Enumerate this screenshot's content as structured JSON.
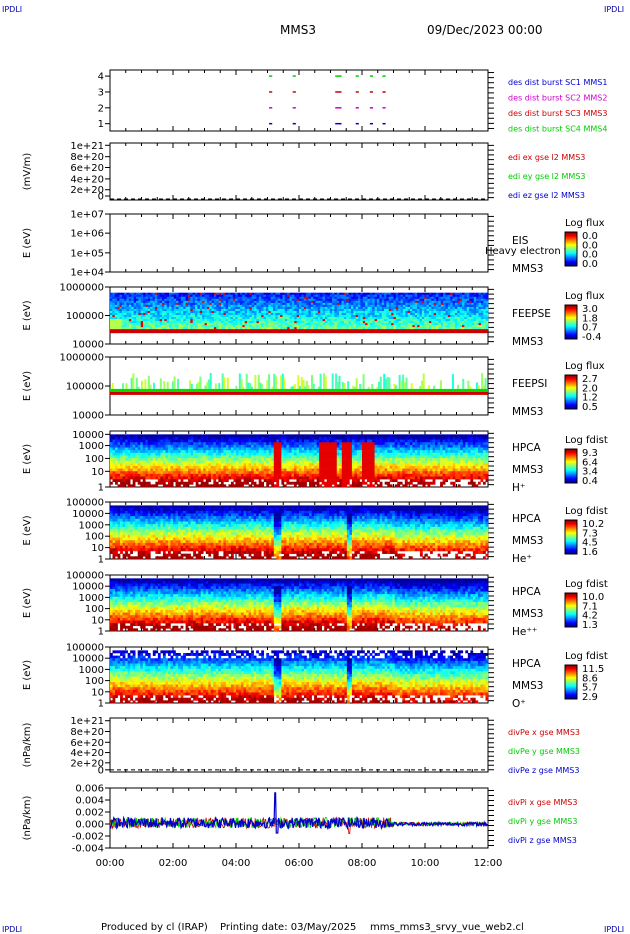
{
  "corners": {
    "top_left": "IPDLI",
    "top_right": "IPDLI",
    "bottom_left": "IPDLI",
    "bottom_right": "IPDLI"
  },
  "header": {
    "title": "MMS3",
    "date": "09/Dec/2023 00:00"
  },
  "footer": {
    "produced": "Produced by cl (IRAP)",
    "printing": "Printing date: 03/May/2025",
    "script": "mms_mms3_srvy_vue_web2.cl"
  },
  "x_axis": {
    "ticks": [
      "00:00",
      "02:00",
      "04:00",
      "06:00",
      "08:00",
      "10:00",
      "12:00"
    ]
  },
  "colors": {
    "red": "#cc0000",
    "green": "#00cc00",
    "blue": "#0000cc",
    "magenta": "#cc00cc",
    "dark": "#000000"
  },
  "chart_data": [
    {
      "type": "line",
      "id": "burst",
      "yticks": [
        "4",
        "3",
        "2",
        "1"
      ],
      "legend": [
        {
          "text": "des dist burst SC1 MMS1",
          "color": "#0000cc"
        },
        {
          "text": "des dist burst SC2 MMS2",
          "color": "#cc00cc"
        },
        {
          "text": "des dist burst SC3 MMS3",
          "color": "#cc0000"
        },
        {
          "text": "des dist burst SC4 MMS4",
          "color": "#00cc00"
        }
      ],
      "burst_intervals": [
        [
          5.05,
          5.15
        ],
        [
          5.8,
          5.9
        ],
        [
          7.15,
          7.35
        ],
        [
          7.8,
          7.9
        ],
        [
          8.25,
          8.35
        ],
        [
          8.65,
          8.75
        ]
      ]
    },
    {
      "type": "line",
      "id": "edi",
      "ylabel": "(mV/m)",
      "yticks": [
        "1e+21",
        "8e+20",
        "6e+20",
        "4e+20",
        "2e+20",
        "0"
      ],
      "legend": [
        {
          "text": "edi ex gse l2 MMS3",
          "color": "#cc0000"
        },
        {
          "text": "edi ey gse l2 MMS3",
          "color": "#00cc00"
        },
        {
          "text": "edi ez gse l2 MMS3",
          "color": "#0000cc"
        }
      ]
    },
    {
      "type": "heatmap",
      "id": "eis",
      "ylabel": "E (eV)",
      "yticks": [
        "1e+07",
        "1e+06",
        "1e+05",
        "1e+04"
      ],
      "labels": [
        "EIS",
        "MMS3"
      ],
      "overlay": "Heavy electron to",
      "cbar_title": "Log flux",
      "cbar_ticks": [
        "0.0",
        "0.0",
        "0.0",
        "0.0"
      ]
    },
    {
      "type": "heatmap",
      "id": "feepse",
      "ylabel": "E (eV)",
      "yticks": [
        "1000000",
        "100000",
        "10000"
      ],
      "labels": [
        "FEEPSE",
        "MMS3"
      ],
      "cbar_title": "Log flux",
      "cbar_ticks": [
        "3.0",
        "1.8",
        "0.7",
        "-0.4"
      ]
    },
    {
      "type": "heatmap",
      "id": "feepsi",
      "ylabel": "E (eV)",
      "yticks": [
        "1000000",
        "100000",
        "10000"
      ],
      "labels": [
        "FEEPSI",
        "MMS3"
      ],
      "cbar_title": "Log flux",
      "cbar_ticks": [
        "2.7",
        "2.0",
        "1.2",
        "0.5"
      ]
    },
    {
      "type": "heatmap",
      "id": "hpca_h",
      "ylabel": "E (eV)",
      "yticks": [
        "10000",
        "1000",
        "100",
        "10",
        "1"
      ],
      "labels": [
        "HPCA",
        "MMS3",
        "H⁺"
      ],
      "cbar_title": "Log fdist",
      "cbar_ticks": [
        "9.3",
        "6.4",
        "3.4",
        "0.4"
      ]
    },
    {
      "type": "heatmap",
      "id": "hpca_he",
      "ylabel": "E (eV)",
      "yticks": [
        "100000",
        "10000",
        "1000",
        "100",
        "10",
        "1"
      ],
      "labels": [
        "HPCA",
        "MMS3",
        "He⁺"
      ],
      "cbar_title": "Log fdist",
      "cbar_ticks": [
        "10.2",
        "7.3",
        "4.5",
        "1.6"
      ]
    },
    {
      "type": "heatmap",
      "id": "hpca_hepp",
      "ylabel": "E (eV)",
      "yticks": [
        "100000",
        "10000",
        "1000",
        "100",
        "10",
        "1"
      ],
      "labels": [
        "HPCA",
        "MMS3",
        "He⁺⁺"
      ],
      "cbar_title": "Log fdist",
      "cbar_ticks": [
        "10.0",
        "7.1",
        "4.2",
        "1.3"
      ]
    },
    {
      "type": "heatmap",
      "id": "hpca_o",
      "ylabel": "E (eV)",
      "yticks": [
        "100000",
        "10000",
        "1000",
        "100",
        "10",
        "1"
      ],
      "labels": [
        "HPCA",
        "MMS3",
        "O⁺"
      ],
      "cbar_title": "Log fdist",
      "cbar_ticks": [
        "11.5",
        "8.6",
        "5.7",
        "2.9"
      ]
    },
    {
      "type": "line",
      "id": "divpe",
      "ylabel": "(nPa/km)",
      "yticks": [
        "1e+21",
        "8e+20",
        "6e+20",
        "4e+20",
        "2e+20",
        "0"
      ],
      "legend": [
        {
          "text": "divPe x gse MMS3",
          "color": "#cc0000"
        },
        {
          "text": "divPe y gse MMS3",
          "color": "#00cc00"
        },
        {
          "text": "divPe z gse MMS3",
          "color": "#0000cc"
        }
      ]
    },
    {
      "type": "line",
      "id": "divpi",
      "ylabel": "(nPa/km)",
      "yticks": [
        "0.006",
        "0.004",
        "0.002",
        "0.000",
        "-0.002",
        "-0.004"
      ],
      "ylim": [
        -0.004,
        0.006
      ],
      "legend": [
        {
          "text": "divPi x gse MMS3",
          "color": "#cc0000"
        },
        {
          "text": "divPi y gse MMS3",
          "color": "#00cc00"
        },
        {
          "text": "divPi z gse MMS3",
          "color": "#0000cc"
        }
      ]
    }
  ]
}
